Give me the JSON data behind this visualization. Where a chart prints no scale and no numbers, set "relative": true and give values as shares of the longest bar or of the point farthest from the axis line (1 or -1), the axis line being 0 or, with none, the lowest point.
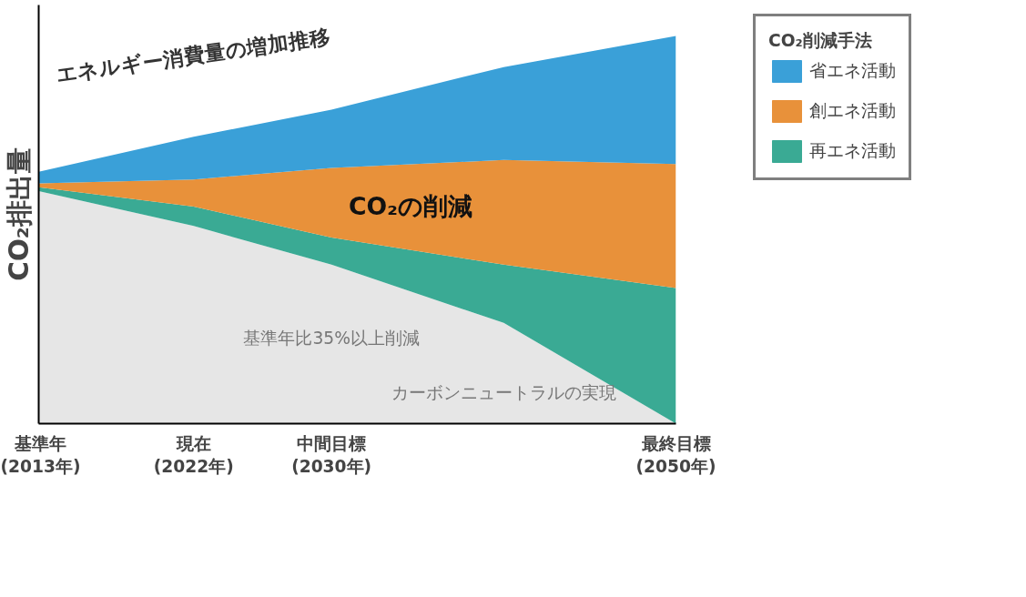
{
  "chart_data": {
    "type": "area",
    "stacked": true,
    "relative": true,
    "ylabel": "CO₂排出量",
    "legend_title": "CO₂削減手法",
    "legend": "right",
    "grid": false,
    "tick_labels": "x",
    "x": [
      2013,
      2022,
      2030,
      2040,
      2050
    ],
    "xlim": [
      2013,
      2050
    ],
    "xticks": [
      {
        "value": 2013,
        "label": "基準年\n(2013年)"
      },
      {
        "value": 2022,
        "label": "現在\n(2022年)"
      },
      {
        "value": 2030,
        "label": "中間目標\n(2030年)"
      },
      {
        "value": 2050,
        "label": "最終目標\n(2050年)"
      }
    ],
    "series": [
      {
        "color": "#e6e6e6",
        "values": [
          0.6,
          0.51,
          0.41,
          0.26,
          0
        ]
      },
      {
        "name": "再エネ活動",
        "color": "#3aaa94",
        "values": [
          0.01,
          0.05,
          0.07,
          0.15,
          0.35
        ]
      },
      {
        "name": "創エネ活動",
        "color": "#e8913a",
        "values": [
          0.01,
          0.07,
          0.18,
          0.27,
          0.32
        ]
      },
      {
        "name": "省エネ活動",
        "color": "#3aa0d8",
        "values": [
          0.03,
          0.11,
          0.15,
          0.24,
          0.33
        ]
      }
    ],
    "annotations": [
      "エネルギー消費量の増加推移",
      "CO₂の削減",
      "基準年比35%以上削減",
      "カーボンニュートラルの実現"
    ]
  }
}
